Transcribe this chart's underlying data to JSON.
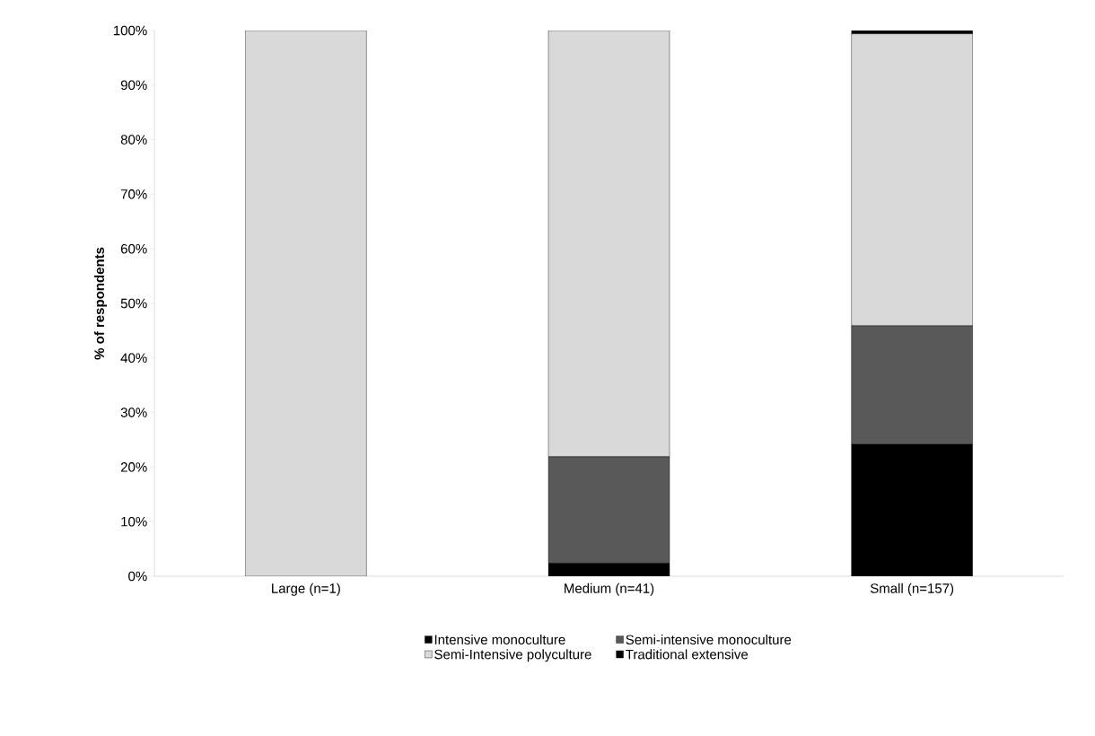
{
  "chart_data": {
    "type": "bar",
    "stacked": true,
    "ylabel": "**% of respondents**",
    "categories": [
      "Large (n=1)",
      "Medium (n=41)",
      "Small (n=157)"
    ],
    "series": [
      {
        "name": "Intensive monoculture",
        "color": "#000000",
        "values": [
          0,
          2.4,
          24.2
        ]
      },
      {
        "name": "Semi-intensive monoculture",
        "color": "#595959",
        "values": [
          0,
          19.5,
          21.7
        ]
      },
      {
        "name": "Semi-Intensive polyculture",
        "color": "#d9d9d9",
        "values": [
          100,
          78.1,
          53.5
        ]
      },
      {
        "name": "Traditional extensive",
        "color": "#000000",
        "values": [
          0,
          0,
          0.6
        ]
      }
    ],
    "ylim": [
      0,
      100
    ],
    "yticks": [
      {
        "value": 0,
        "label": "0%"
      },
      {
        "value": 10,
        "label": "10%"
      },
      {
        "value": 20,
        "label": "20%"
      },
      {
        "value": 30,
        "label": "30%"
      },
      {
        "value": 40,
        "label": "40%"
      },
      {
        "value": 50,
        "label": "50%"
      },
      {
        "value": 60,
        "label": "60%"
      },
      {
        "value": 70,
        "label": "70%"
      },
      {
        "value": 80,
        "label": "80%"
      },
      {
        "value": 90,
        "label": "90%"
      },
      {
        "value": 100,
        "label": "100%"
      }
    ],
    "legend": "bottom",
    "grid": false
  }
}
